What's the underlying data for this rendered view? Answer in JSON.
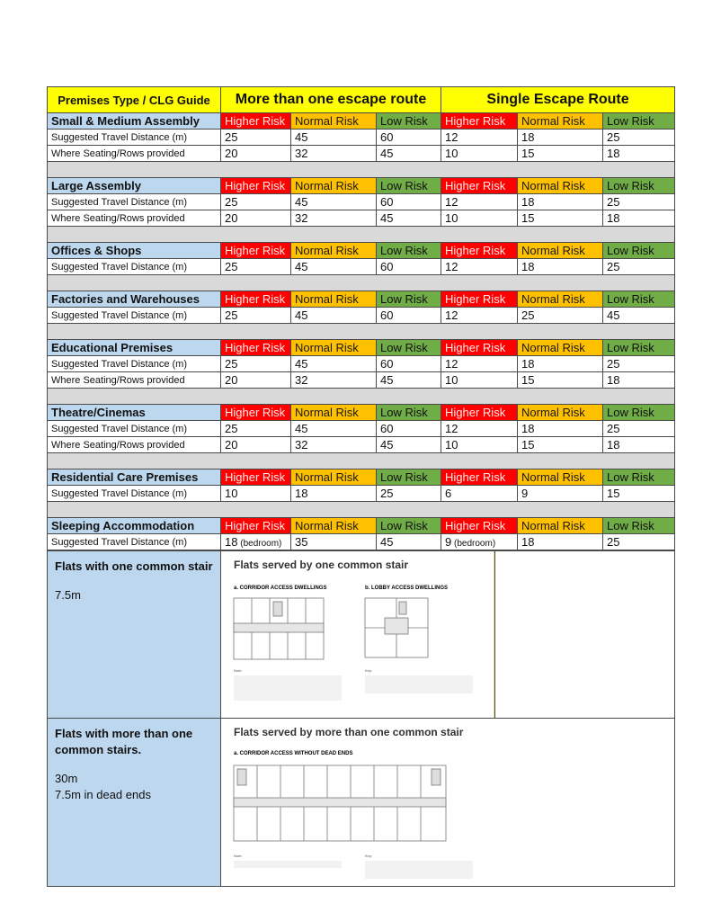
{
  "header": {
    "col0": "Premises Type / CLG Guide",
    "group1": "More than one escape route",
    "group2": "Single Escape Route"
  },
  "risk_labels": [
    "Higher Risk",
    "Normal Risk",
    "Low Risk",
    "Higher Risk",
    "Normal Risk",
    "Low Risk"
  ],
  "colors": {
    "higher": "#ff0000",
    "normal": "#ffc000",
    "low": "#70ad47",
    "header": "#ffff00",
    "section": "#bdd7ee",
    "gap": "#d9d9d9"
  },
  "sections": [
    {
      "title": "Small & Medium Assembly",
      "rows": [
        {
          "label": "Suggested Travel Distance (m)",
          "values": [
            "25",
            "45",
            "60",
            "12",
            "18",
            "25"
          ]
        },
        {
          "label": "Where Seating/Rows provided",
          "values": [
            "20",
            "32",
            "45",
            "10",
            "15",
            "18"
          ]
        }
      ]
    },
    {
      "title": "Large Assembly",
      "rows": [
        {
          "label": "Suggested Travel Distance (m)",
          "values": [
            "25",
            "45",
            "60",
            "12",
            "18",
            "25"
          ]
        },
        {
          "label": "Where Seating/Rows provided",
          "values": [
            "20",
            "32",
            "45",
            "10",
            "15",
            "18"
          ]
        }
      ]
    },
    {
      "title": "Offices & Shops",
      "rows": [
        {
          "label": "Suggested Travel Distance (m)",
          "values": [
            "25",
            "45",
            "60",
            "12",
            "18",
            "25"
          ]
        }
      ]
    },
    {
      "title": "Factories and Warehouses",
      "rows": [
        {
          "label": "Suggested Travel Distance (m)",
          "values": [
            "25",
            "45",
            "60",
            "12",
            "25",
            "45"
          ]
        }
      ]
    },
    {
      "title": "Educational Premises",
      "rows": [
        {
          "label": "Suggested Travel Distance (m)",
          "values": [
            "25",
            "45",
            "60",
            "12",
            "18",
            "25"
          ]
        },
        {
          "label": "Where Seating/Rows provided",
          "values": [
            "20",
            "32",
            "45",
            "10",
            "15",
            "18"
          ]
        }
      ]
    },
    {
      "title": "Theatre/Cinemas",
      "rows": [
        {
          "label": "Suggested Travel Distance (m)",
          "values": [
            "25",
            "45",
            "60",
            "12",
            "18",
            "25"
          ]
        },
        {
          "label": "Where Seating/Rows provided",
          "values": [
            "20",
            "32",
            "45",
            "10",
            "15",
            "18"
          ]
        }
      ]
    },
    {
      "title": "Residential Care Premises",
      "rows": [
        {
          "label": "Suggested Travel Distance (m)",
          "values": [
            "10",
            "18",
            "25",
            "6",
            "9",
            "15"
          ]
        }
      ]
    },
    {
      "title": "Sleeping Accommodation",
      "rows": [
        {
          "label": "Suggested Travel Distance (m)",
          "values": [
            "18",
            "35",
            "45",
            "9",
            "18",
            "25"
          ],
          "suffix": [
            " (bedroom)",
            "",
            "",
            " (bedroom)",
            "",
            ""
          ]
        }
      ]
    }
  ],
  "flats": [
    {
      "label": "Flats with one common stair",
      "distance_lines": [
        "7.5m"
      ],
      "diagram_title": "Flats served by one common stair",
      "sub_a": "a. CORRIDOR ACCESS DWELLINGS",
      "sub_b": "b. LOBBY ACCESS DWELLINGS"
    },
    {
      "label": "Flats with more than one common stairs.",
      "distance_lines": [
        "30m",
        "7.5m in dead ends"
      ],
      "diagram_title": "Flats served by more than one common stair",
      "sub_a": "a. CORRIDOR ACCESS WITHOUT DEAD ENDS"
    }
  ]
}
